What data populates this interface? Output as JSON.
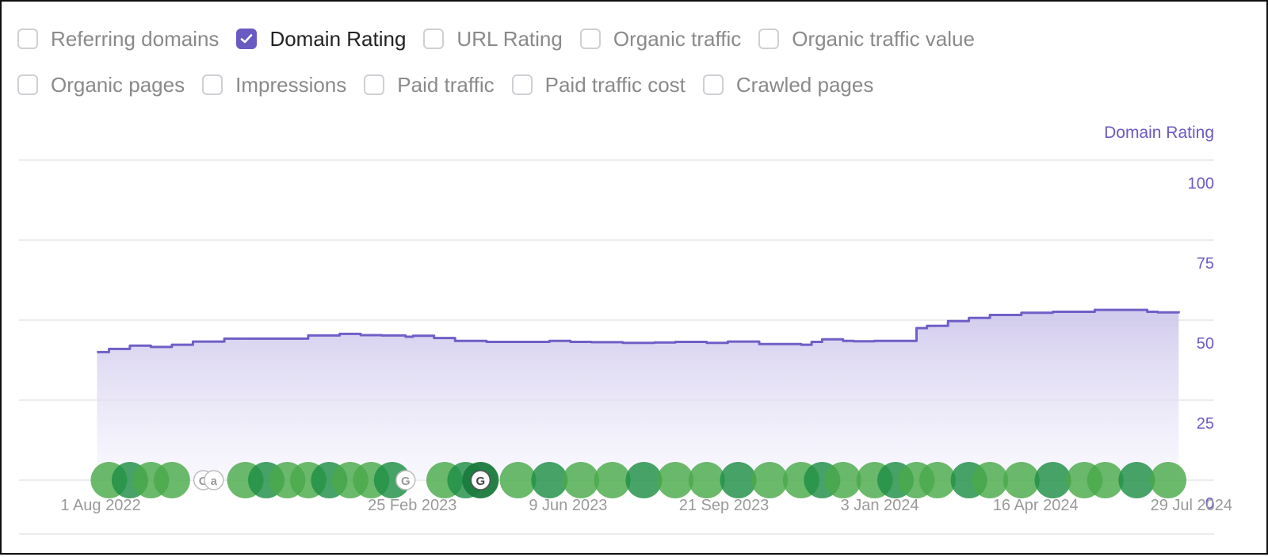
{
  "filters": [
    [
      {
        "label": "Referring domains",
        "checked": false
      },
      {
        "label": "Domain Rating",
        "checked": true
      },
      {
        "label": "URL Rating",
        "checked": false
      },
      {
        "label": "Organic traffic",
        "checked": false
      },
      {
        "label": "Organic traffic value",
        "checked": false
      }
    ],
    [
      {
        "label": "Organic pages",
        "checked": false
      },
      {
        "label": "Impressions",
        "checked": false
      },
      {
        "label": "Paid traffic",
        "checked": false
      },
      {
        "label": "Paid traffic cost",
        "checked": false
      },
      {
        "label": "Crawled pages",
        "checked": false
      }
    ]
  ],
  "colors": {
    "accent": "#6a5bc2",
    "line": "#6f5fc7",
    "grid": "#e6e6ea",
    "tick_x": "#9a9a9a",
    "tick_y": "#6a5bc2",
    "marker_green": "#4aa94a",
    "marker_dark": "#1f8f45"
  },
  "chart_data": {
    "type": "area",
    "series": [
      {
        "name": "Domain Rating",
        "color": "#6f5fc7"
      }
    ],
    "y_axis_title": "Domain Rating",
    "ylim": [
      0,
      100
    ],
    "yticks": [
      0,
      25,
      50,
      75,
      100
    ],
    "xlim": [
      "2022-07-23",
      "2024-08-10"
    ],
    "xticks": [
      {
        "label": "1 Aug 2022",
        "date": "2022-08-01"
      },
      {
        "label": "25 Feb 2023",
        "date": "2023-02-25"
      },
      {
        "label": "9 Jun 2023",
        "date": "2023-06-09"
      },
      {
        "label": "21 Sep 2023",
        "date": "2023-09-21"
      },
      {
        "label": "3 Jan 2024",
        "date": "2024-01-03"
      },
      {
        "label": "16 Apr 2024",
        "date": "2024-04-16"
      },
      {
        "label": "29 Jul 2024",
        "date": "2024-07-29"
      }
    ],
    "points": [
      [
        "2022-08-07",
        40
      ],
      [
        "2022-08-15",
        41
      ],
      [
        "2022-08-29",
        42
      ],
      [
        "2022-09-12",
        41.6
      ],
      [
        "2022-09-26",
        42.3
      ],
      [
        "2022-10-10",
        43.3
      ],
      [
        "2022-10-31",
        44.2
      ],
      [
        "2022-11-28",
        44.2
      ],
      [
        "2022-12-26",
        45.2
      ],
      [
        "2023-01-16",
        45.7
      ],
      [
        "2023-01-30",
        45.3
      ],
      [
        "2023-02-13",
        45.2
      ],
      [
        "2023-03-01",
        44.8
      ],
      [
        "2023-03-06",
        45.1
      ],
      [
        "2023-03-20",
        44.4
      ],
      [
        "2023-04-03",
        43.5
      ],
      [
        "2023-04-24",
        43.2
      ],
      [
        "2023-05-15",
        43.2
      ],
      [
        "2023-06-05",
        43.5
      ],
      [
        "2023-06-19",
        43.2
      ],
      [
        "2023-07-03",
        43.1
      ],
      [
        "2023-07-24",
        42.9
      ],
      [
        "2023-08-14",
        43.0
      ],
      [
        "2023-08-28",
        43.2
      ],
      [
        "2023-09-18",
        42.9
      ],
      [
        "2023-10-02",
        43.3
      ],
      [
        "2023-10-23",
        42.5
      ],
      [
        "2023-11-20",
        42.3
      ],
      [
        "2023-11-27",
        43.2
      ],
      [
        "2023-12-04",
        44.0
      ],
      [
        "2023-12-18",
        43.5
      ],
      [
        "2023-12-25",
        43.4
      ],
      [
        "2024-01-08",
        43.5
      ],
      [
        "2024-01-29",
        43.5
      ],
      [
        "2024-02-05",
        47.5
      ],
      [
        "2024-02-12",
        48.2
      ],
      [
        "2024-02-26",
        49.7
      ],
      [
        "2024-03-11",
        50.7
      ],
      [
        "2024-03-25",
        51.6
      ],
      [
        "2024-04-15",
        52.3
      ],
      [
        "2024-05-06",
        52.6
      ],
      [
        "2024-06-03",
        53.2
      ],
      [
        "2024-06-24",
        53.2
      ],
      [
        "2024-07-08",
        52.6
      ],
      [
        "2024-07-15",
        52.4
      ],
      [
        "2024-07-29",
        52.8
      ]
    ],
    "markers": [
      {
        "date": "2022-08-15",
        "kind": "update"
      },
      {
        "date": "2022-08-29",
        "kind": "update"
      },
      {
        "date": "2022-09-12",
        "kind": "update"
      },
      {
        "date": "2022-09-26",
        "kind": "update"
      },
      {
        "date": "2022-10-17",
        "kind": "google"
      },
      {
        "date": "2022-10-24",
        "kind": "ahrefs"
      },
      {
        "date": "2022-11-14",
        "kind": "update"
      },
      {
        "date": "2022-11-28",
        "kind": "update"
      },
      {
        "date": "2022-12-12",
        "kind": "update"
      },
      {
        "date": "2022-12-26",
        "kind": "update"
      },
      {
        "date": "2023-01-09",
        "kind": "update"
      },
      {
        "date": "2023-01-23",
        "kind": "update"
      },
      {
        "date": "2023-02-06",
        "kind": "update"
      },
      {
        "date": "2023-02-20",
        "kind": "update"
      },
      {
        "date": "2023-03-01",
        "kind": "google"
      },
      {
        "date": "2023-03-27",
        "kind": "update"
      },
      {
        "date": "2023-04-10",
        "kind": "update"
      },
      {
        "date": "2023-04-20",
        "kind": "google-dark"
      },
      {
        "date": "2023-05-15",
        "kind": "update"
      },
      {
        "date": "2023-06-05",
        "kind": "update"
      },
      {
        "date": "2023-06-26",
        "kind": "update"
      },
      {
        "date": "2023-07-17",
        "kind": "update"
      },
      {
        "date": "2023-08-07",
        "kind": "update"
      },
      {
        "date": "2023-08-28",
        "kind": "update"
      },
      {
        "date": "2023-09-18",
        "kind": "update"
      },
      {
        "date": "2023-10-09",
        "kind": "update"
      },
      {
        "date": "2023-10-30",
        "kind": "update"
      },
      {
        "date": "2023-11-20",
        "kind": "update"
      },
      {
        "date": "2023-12-04",
        "kind": "update"
      },
      {
        "date": "2023-12-18",
        "kind": "update"
      },
      {
        "date": "2024-01-08",
        "kind": "update"
      },
      {
        "date": "2024-01-22",
        "kind": "update"
      },
      {
        "date": "2024-02-05",
        "kind": "update"
      },
      {
        "date": "2024-02-19",
        "kind": "update"
      },
      {
        "date": "2024-03-11",
        "kind": "update"
      },
      {
        "date": "2024-03-25",
        "kind": "update"
      },
      {
        "date": "2024-04-15",
        "kind": "update"
      },
      {
        "date": "2024-05-06",
        "kind": "update"
      },
      {
        "date": "2024-05-27",
        "kind": "update"
      },
      {
        "date": "2024-06-10",
        "kind": "update"
      },
      {
        "date": "2024-07-01",
        "kind": "update"
      },
      {
        "date": "2024-07-22",
        "kind": "update"
      }
    ]
  }
}
